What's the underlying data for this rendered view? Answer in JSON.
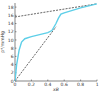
{
  "chart_data": {
    "type": "line",
    "x_label": "xB",
    "y_label": "p*/mmHg",
    "xlim": [
      0,
      1
    ],
    "ylim": [
      0,
      19
    ],
    "xticks": [
      0,
      0.2,
      0.4,
      0.6,
      0.8,
      1
    ],
    "yticks": [
      0,
      2,
      4,
      6,
      8,
      10,
      12,
      14,
      16,
      18
    ],
    "grid": false,
    "series": [
      {
        "color": "#222222",
        "line_style": "dashed",
        "x": [
          0,
          1
        ],
        "values": [
          15.6,
          18.8
        ]
      },
      {
        "color": "#222222",
        "line_style": "dashed",
        "x": [
          0,
          0.5
        ],
        "values": [
          0,
          13.2
        ]
      },
      {
        "color": "#5ecfe8",
        "line_style": "solid",
        "x": [
          0,
          0.02,
          0.05,
          0.08,
          0.12,
          0.2,
          0.3,
          0.4,
          0.45,
          0.5,
          0.53,
          0.56,
          0.6,
          0.7,
          0.8,
          0.9,
          1
        ],
        "values": [
          0,
          4,
          7.5,
          9.5,
          10.3,
          10.8,
          11.3,
          11.8,
          12.3,
          14,
          15.3,
          16.3,
          16.6,
          17.2,
          17.8,
          18.3,
          18.8
        ]
      }
    ]
  }
}
